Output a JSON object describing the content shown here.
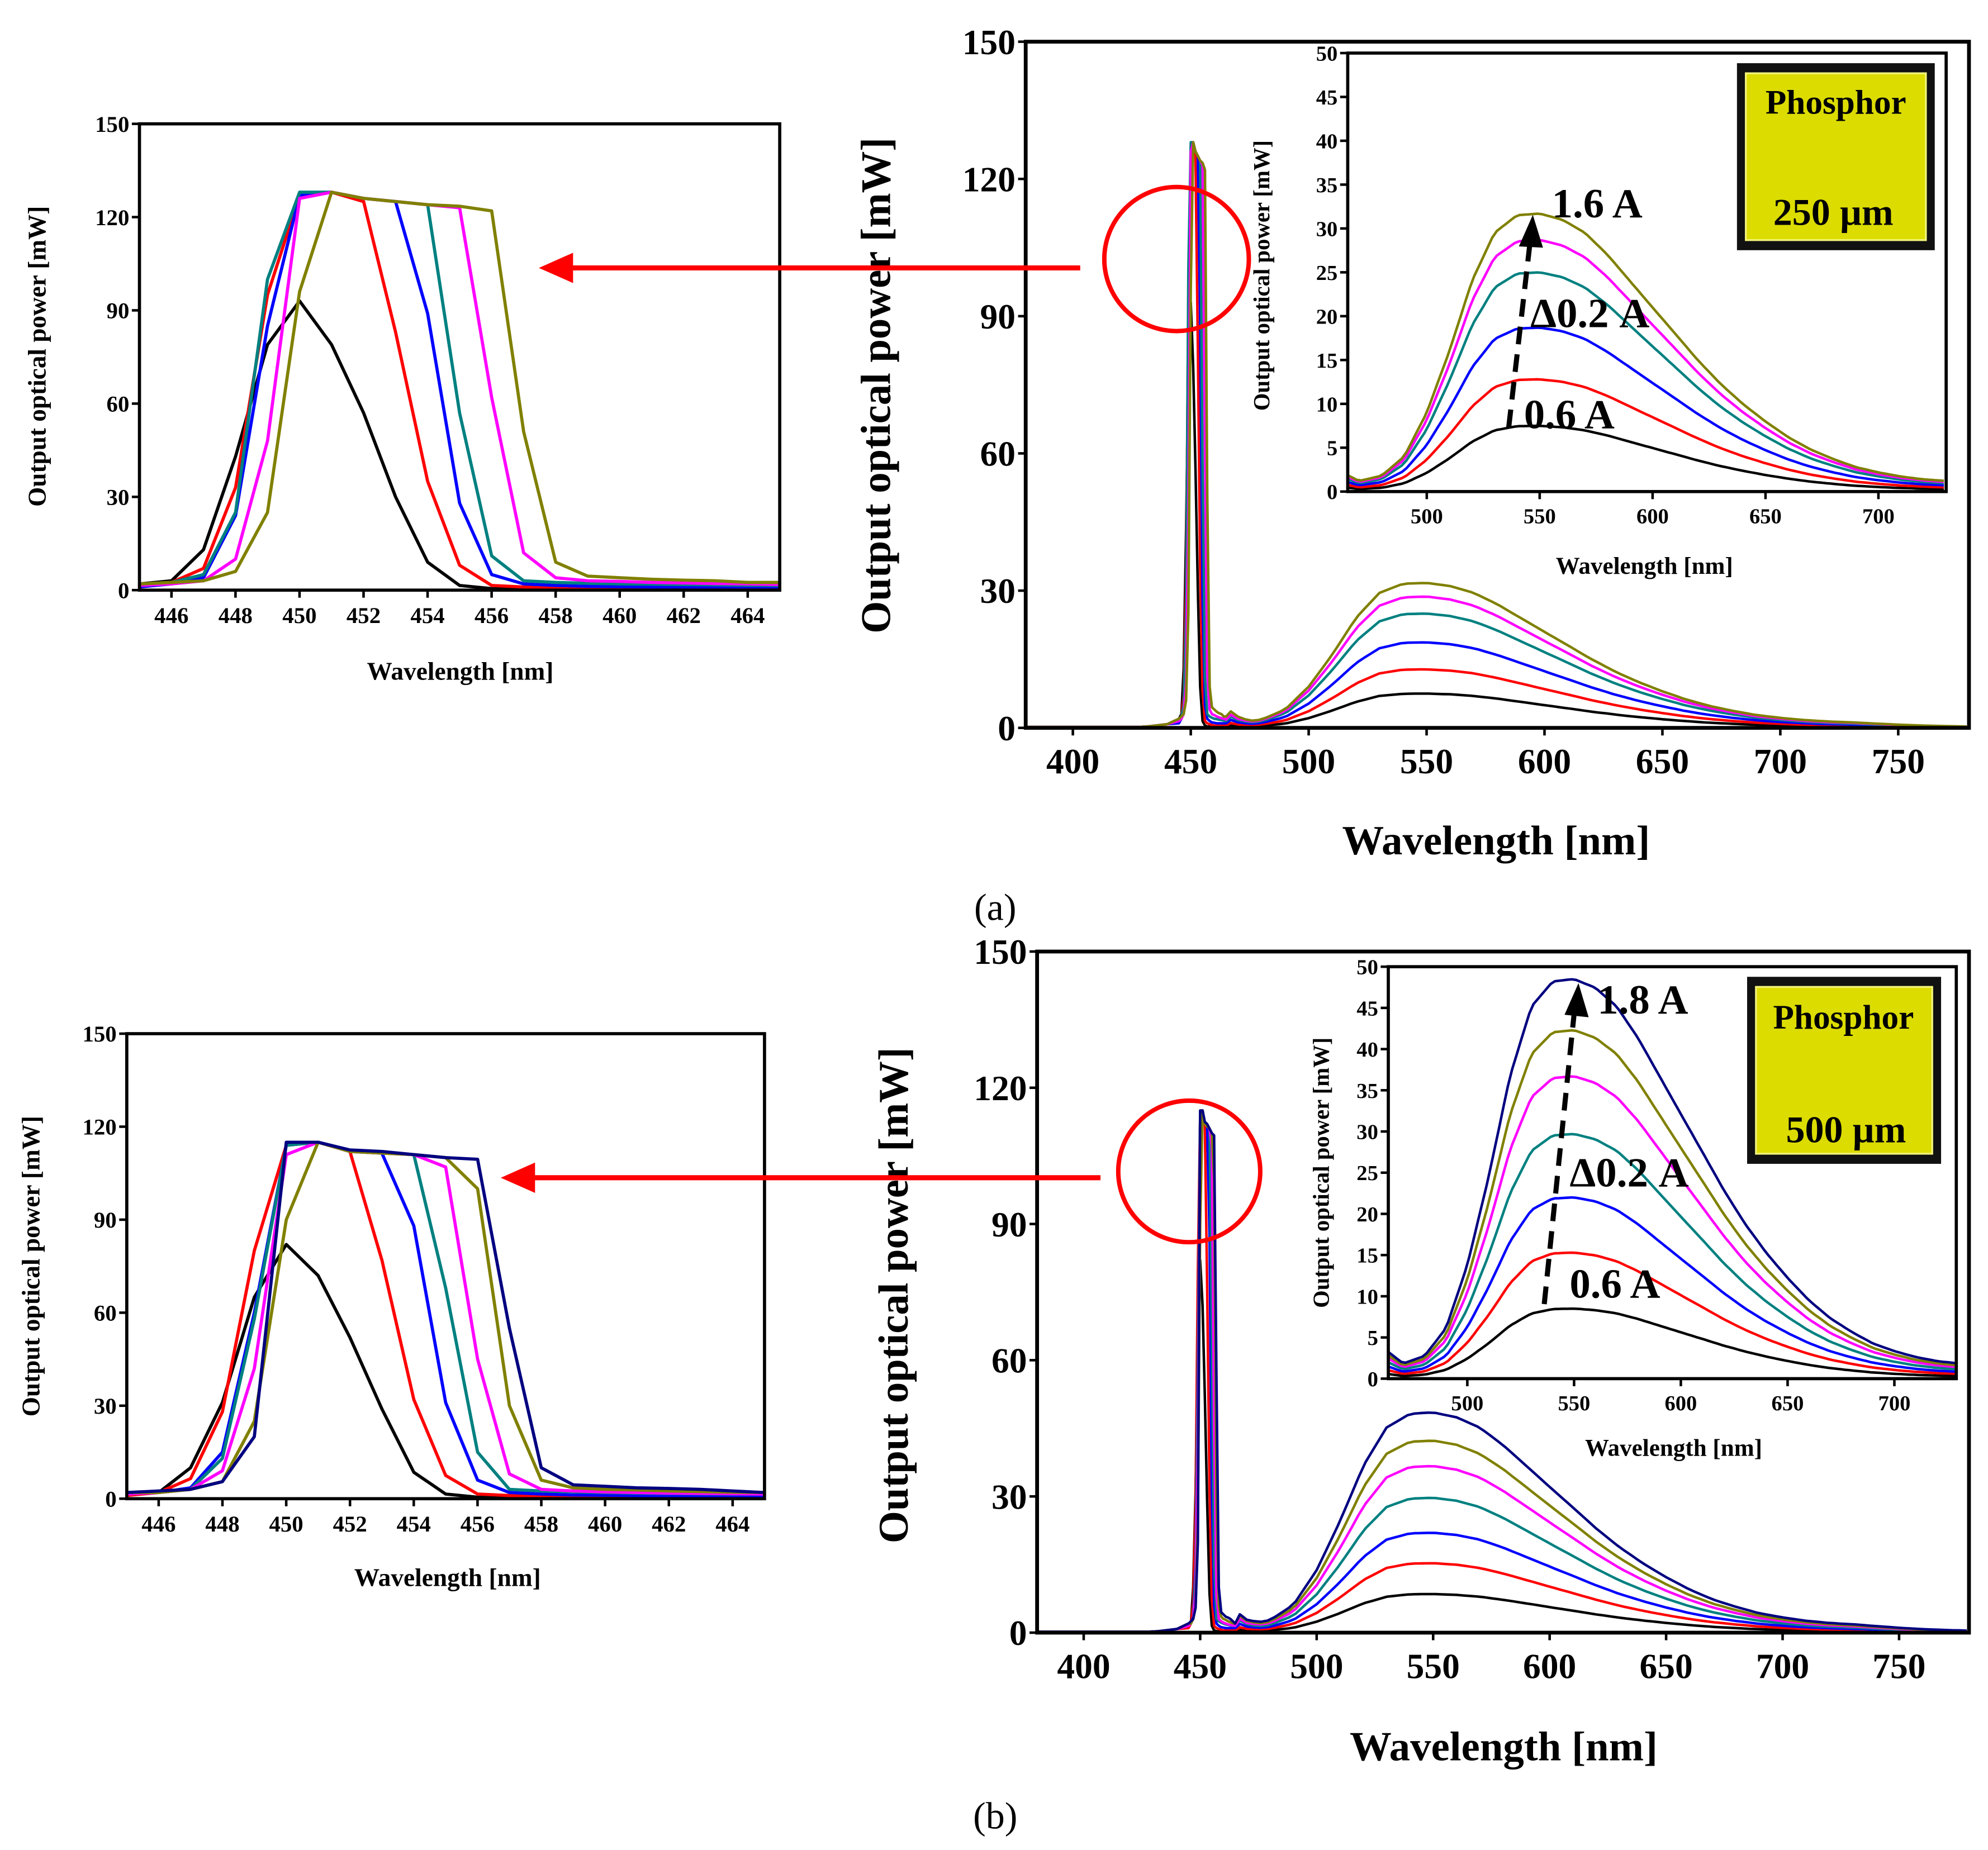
{
  "phosphor_shape": {
    "x": [
      460,
      470,
      480,
      490,
      500,
      510,
      520,
      530,
      540,
      550,
      560,
      570,
      580,
      590,
      600,
      610,
      620,
      630,
      640,
      650,
      660,
      670,
      680,
      690,
      700,
      710,
      720,
      730,
      740,
      750,
      760,
      770,
      780
    ],
    "relative": [
      0.079,
      0.038,
      0.057,
      0.126,
      0.284,
      0.505,
      0.757,
      0.931,
      0.994,
      1.0,
      0.978,
      0.931,
      0.852,
      0.757,
      0.662,
      0.568,
      0.473,
      0.388,
      0.315,
      0.252,
      0.196,
      0.151,
      0.117,
      0.088,
      0.069,
      0.054,
      0.044,
      0.038,
      0.03,
      0.022,
      0.016,
      0.012,
      0.009
    ]
  },
  "chart_data": [
    {
      "type": "line",
      "panel_label": "(a)",
      "phosphor_label": "Phosphor",
      "phosphor_thickness": "250 µm",
      "main": {
        "xlabel": "Wavelength [nm]",
        "ylabel": "Output optical power [mW]",
        "xlim": [
          380,
          780
        ],
        "ylim": [
          0,
          150
        ],
        "xticks": [
          "400",
          "450",
          "500",
          "550",
          "600",
          "650",
          "700",
          "750"
        ],
        "yticks": [
          "0",
          "30",
          "60",
          "90",
          "120",
          "150"
        ]
      },
      "inset": {
        "xlabel": "Wavelength [nm]",
        "ylabel": "Output optical power [mW]",
        "xlim": [
          465,
          730
        ],
        "ylim": [
          0,
          50
        ],
        "xticks": [
          "500",
          "550",
          "600",
          "650",
          "700"
        ],
        "yticks": [
          "0",
          "5",
          "10",
          "15",
          "20",
          "25",
          "30",
          "35",
          "40",
          "45",
          "50"
        ],
        "annotation_top": "1.6 A",
        "annotation_step": "Δ0.2 A",
        "annotation_bottom": "0.6 A"
      },
      "zoom": {
        "xlabel": "Wavelength [nm]",
        "ylabel": "Output optical power [mW]",
        "xlim": [
          445,
          465
        ],
        "ylim": [
          0,
          150
        ],
        "xticks": [
          "446",
          "448",
          "450",
          "452",
          "454",
          "456",
          "458",
          "460",
          "462",
          "464"
        ],
        "yticks": [
          "0",
          "30",
          "60",
          "90",
          "120",
          "150"
        ],
        "x": [
          445,
          446,
          447,
          448,
          449,
          450,
          451,
          452,
          453,
          454,
          455,
          456,
          457,
          458,
          459,
          460,
          461,
          462,
          463,
          464,
          465
        ]
      },
      "series": [
        {
          "current_A": 0.6,
          "color": "#000000",
          "phosphor_peak": 7.5,
          "zoom_values": [
            2,
            3,
            13,
            43,
            79,
            93,
            79,
            57,
            30,
            9,
            1.5,
            0.5,
            0.3,
            0.3,
            0.2,
            0.2,
            0.2,
            0.2,
            0.2,
            0.2,
            0.2
          ]
        },
        {
          "current_A": 0.8,
          "color": "#ff0000",
          "phosphor_peak": 12.8,
          "zoom_values": [
            2,
            2.5,
            7,
            33,
            95,
            127,
            128,
            125,
            83,
            35,
            8,
            1.5,
            1,
            0.8,
            0.6,
            0.5,
            0.5,
            0.5,
            0.5,
            0.5,
            0.5
          ]
        },
        {
          "current_A": 1.0,
          "color": "#0000ff",
          "phosphor_peak": 18.7,
          "zoom_values": [
            1,
            2,
            4,
            24,
            85,
            127,
            128,
            126,
            125,
            89,
            28,
            5,
            2,
            1.5,
            1.2,
            1.1,
            1,
            1,
            1,
            1,
            1
          ]
        },
        {
          "current_A": 1.2,
          "color": "#008080",
          "phosphor_peak": 25.0,
          "zoom_values": [
            2,
            2.5,
            5,
            25,
            100,
            128,
            128,
            126,
            125,
            124,
            57,
            11,
            3,
            2.5,
            2.2,
            2,
            1.9,
            1.8,
            1.7,
            1.6,
            1.5
          ]
        },
        {
          "current_A": 1.4,
          "color": "#ff00ff",
          "phosphor_peak": 28.7,
          "zoom_values": [
            1.5,
            2,
            3,
            10,
            48,
            126,
            128,
            126,
            125,
            124,
            123,
            62,
            12,
            4,
            3,
            2.8,
            2.5,
            2.3,
            2.1,
            2,
            1.8
          ]
        },
        {
          "current_A": 1.6,
          "color": "#808000",
          "phosphor_peak": 31.7,
          "zoom_values": [
            2,
            2.5,
            3,
            6,
            25,
            96,
            128,
            126,
            125,
            124,
            123.5,
            122,
            51,
            9,
            4.5,
            4,
            3.5,
            3.2,
            3,
            2.5,
            2.5
          ]
        }
      ]
    },
    {
      "type": "line",
      "panel_label": "(b)",
      "phosphor_label": "Phosphor",
      "phosphor_thickness": "500 µm",
      "main": {
        "xlabel": "Wavelength [nm]",
        "ylabel": "Output optical power [mW]",
        "xlim": [
          380,
          780
        ],
        "ylim": [
          0,
          150
        ],
        "xticks": [
          "400",
          "450",
          "500",
          "550",
          "600",
          "650",
          "700",
          "750"
        ],
        "yticks": [
          "0",
          "30",
          "60",
          "90",
          "120",
          "150"
        ]
      },
      "inset": {
        "xlabel": "Wavelength [nm]",
        "ylabel": "Output optical power [mW]",
        "xlim": [
          463,
          729
        ],
        "ylim": [
          0,
          50
        ],
        "xticks": [
          "500",
          "550",
          "600",
          "650",
          "700"
        ],
        "yticks": [
          "0",
          "5",
          "10",
          "15",
          "20",
          "25",
          "30",
          "35",
          "40",
          "45",
          "50"
        ],
        "annotation_top": "1.8 A",
        "annotation_step": "Δ0.2 A",
        "annotation_bottom": "0.6 A"
      },
      "zoom": {
        "xlabel": "Wavelength [nm]",
        "ylabel": "Output optical power [mW]",
        "xlim": [
          445,
          465
        ],
        "ylim": [
          0,
          150
        ],
        "xticks": [
          "446",
          "448",
          "450",
          "452",
          "454",
          "456",
          "458",
          "460",
          "462",
          "464"
        ],
        "yticks": [
          "0",
          "30",
          "60",
          "90",
          "120",
          "150"
        ],
        "x": [
          445,
          446,
          447,
          448,
          449,
          450,
          451,
          452,
          453,
          454,
          455,
          456,
          457,
          458,
          459,
          460,
          461,
          462,
          463,
          464,
          465
        ]
      },
      "series": [
        {
          "current_A": 0.6,
          "color": "#000000",
          "phosphor_peak": 8.5,
          "zoom_values": [
            2,
            2,
            10,
            31,
            65,
            82,
            72,
            52,
            29,
            8.5,
            1.5,
            0.5,
            0.3,
            0.3,
            0.3,
            0.3,
            0.3,
            0.3,
            0.3,
            0.3,
            0.3
          ]
        },
        {
          "current_A": 0.8,
          "color": "#ff0000",
          "phosphor_peak": 15.3,
          "zoom_values": [
            1,
            2,
            6.5,
            28,
            80,
            114,
            115,
            112,
            77,
            32,
            7.5,
            1.5,
            1,
            0.8,
            0.6,
            0.5,
            0.5,
            0.5,
            0.5,
            0.5,
            0.5
          ]
        },
        {
          "current_A": 1.0,
          "color": "#0000ff",
          "phosphor_peak": 22.0,
          "zoom_values": [
            1.5,
            2,
            3.5,
            15,
            60,
            114,
            115,
            112,
            111.5,
            88,
            31,
            6,
            2,
            1.5,
            1.2,
            1.1,
            1,
            1,
            1,
            1,
            1
          ]
        },
        {
          "current_A": 1.2,
          "color": "#008080",
          "phosphor_peak": 29.7,
          "zoom_values": [
            2,
            2,
            3,
            13,
            58,
            114,
            115,
            112,
            111.5,
            111,
            68,
            15,
            3,
            2.5,
            2.2,
            2,
            1.8,
            1.7,
            1.6,
            1.5,
            1.5
          ]
        },
        {
          "current_A": 1.4,
          "color": "#ff00ff",
          "phosphor_peak": 36.7,
          "zoom_values": [
            1.5,
            2,
            3,
            9,
            42,
            111,
            115,
            112,
            111.5,
            111,
            107,
            45,
            8,
            3,
            2.5,
            2.2,
            2,
            1.8,
            1.7,
            1.6,
            1.5
          ]
        },
        {
          "current_A": 1.6,
          "color": "#808000",
          "phosphor_peak": 42.3,
          "zoom_values": [
            2,
            2,
            3,
            5.5,
            25,
            90,
            115,
            112,
            111.5,
            111,
            110,
            100,
            30,
            6,
            3.5,
            3,
            2.8,
            2.5,
            2.3,
            2.1,
            2
          ]
        },
        {
          "current_A": 1.8,
          "color": "#000080",
          "phosphor_peak": 48.5,
          "zoom_values": [
            2,
            2.5,
            3,
            5.5,
            20,
            115,
            115,
            112.5,
            112,
            111,
            110,
            109.5,
            55,
            10,
            4.5,
            4,
            3.5,
            3.3,
            3,
            2.5,
            2
          ]
        }
      ]
    }
  ]
}
